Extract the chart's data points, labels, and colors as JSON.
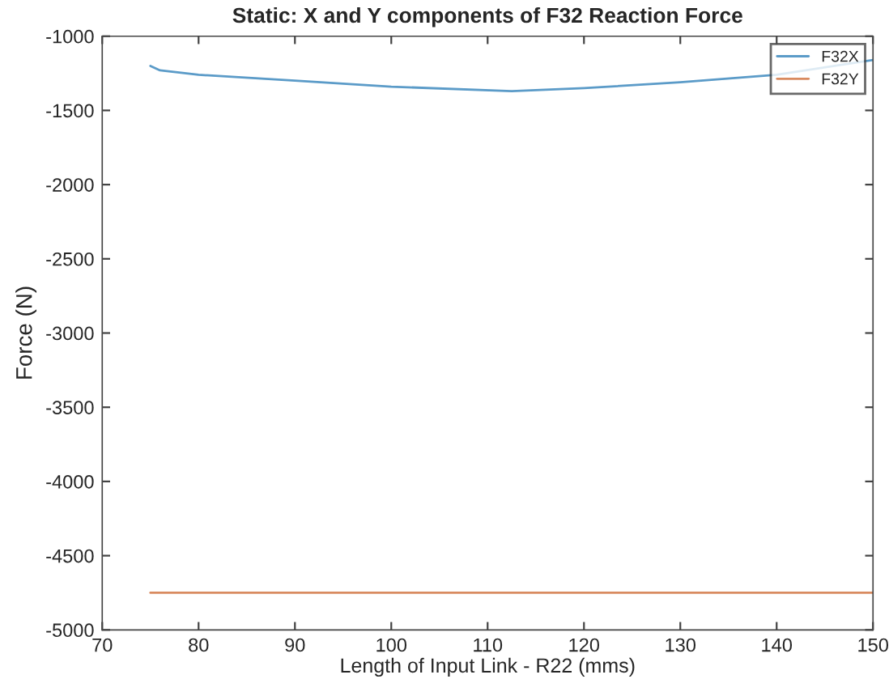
{
  "chart_data": {
    "type": "line",
    "title": "Static: X and Y components of F32 Reaction Force",
    "xlabel": "Length of Input Link - R22 (mms)",
    "ylabel": "Force (N)",
    "series": [
      {
        "name": "F32X",
        "color": "#5b9bc8",
        "x": [
          75,
          76,
          80,
          90,
          100,
          112.5,
          120,
          130,
          140,
          145,
          150
        ],
        "values": [
          -1200,
          -1230,
          -1260,
          -1300,
          -1340,
          -1370,
          -1350,
          -1310,
          -1260,
          null,
          -1160
        ]
      },
      {
        "name": "F32Y",
        "color": "#d98b60",
        "x": [
          75,
          150
        ],
        "values": [
          -4750,
          -4750
        ]
      }
    ],
    "xlim": [
      70,
      150
    ],
    "xticks": [
      70,
      80,
      90,
      100,
      110,
      120,
      130,
      140,
      150
    ],
    "ylim": [
      -5000,
      -1000
    ],
    "yticks": [
      -5000,
      -4500,
      -4000,
      -3500,
      -3000,
      -2500,
      -2000,
      -1500,
      -1000
    ],
    "grid": false,
    "legend": "top right"
  }
}
